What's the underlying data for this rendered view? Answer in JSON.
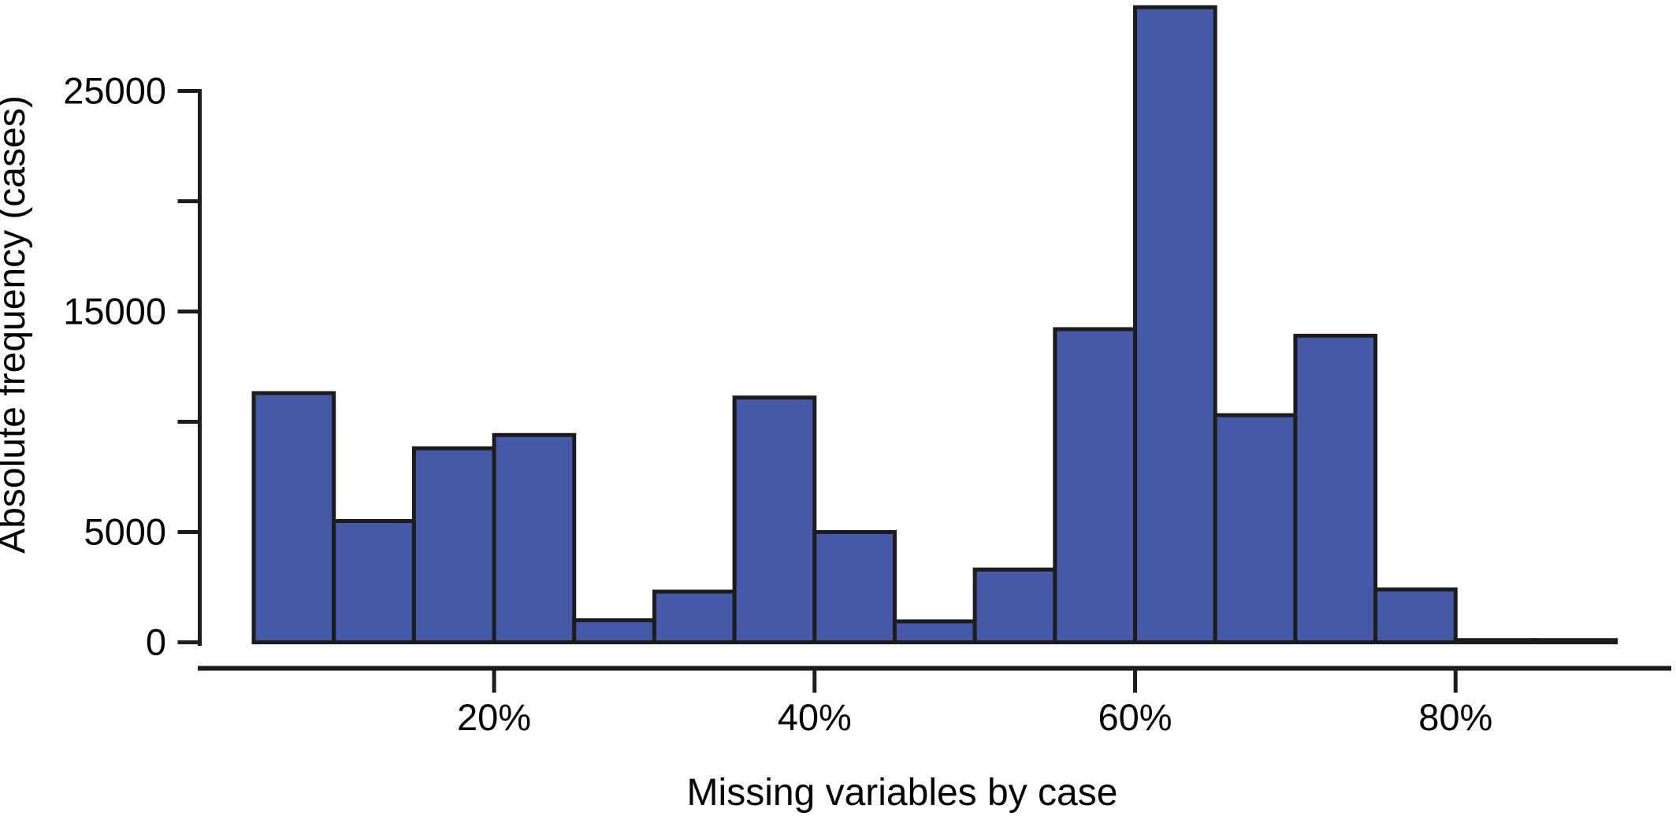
{
  "chart_data": {
    "type": "histogram",
    "title": "",
    "xlabel": "Missing variables by case",
    "ylabel": "Absolute frequency (cases)",
    "x_unit": "percent of variables missing per case",
    "bin_width_percent": 5,
    "bin_edges_percent": [
      5,
      10,
      15,
      20,
      25,
      30,
      35,
      40,
      45,
      50,
      55,
      60,
      65,
      70,
      75,
      80,
      85,
      90
    ],
    "values_cases": [
      11300,
      5500,
      8800,
      9400,
      1000,
      2300,
      11100,
      5000,
      950,
      3300,
      14200,
      28800,
      10300,
      13900,
      2400,
      100,
      100
    ],
    "x_ticks": [
      {
        "percent": 20,
        "label": "20%"
      },
      {
        "percent": 40,
        "label": "40%"
      },
      {
        "percent": 60,
        "label": "60%"
      },
      {
        "percent": 80,
        "label": "80%"
      }
    ],
    "y_ticks": [
      {
        "value": 0,
        "label": "0"
      },
      {
        "value": 5000,
        "label": "5000"
      },
      {
        "value": 10000,
        "label": ""
      },
      {
        "value": 15000,
        "label": "15000"
      },
      {
        "value": 20000,
        "label": ""
      },
      {
        "value": 25000,
        "label": "25000"
      }
    ],
    "ylim": [
      0,
      25000
    ],
    "grid": false,
    "legend": null,
    "colors": {
      "bar_fill": "#4659a6",
      "bar_stroke": "#1c1c1c",
      "axis_stroke": "#1c1c1c",
      "text": "#000000",
      "background": "#ffffff"
    }
  }
}
